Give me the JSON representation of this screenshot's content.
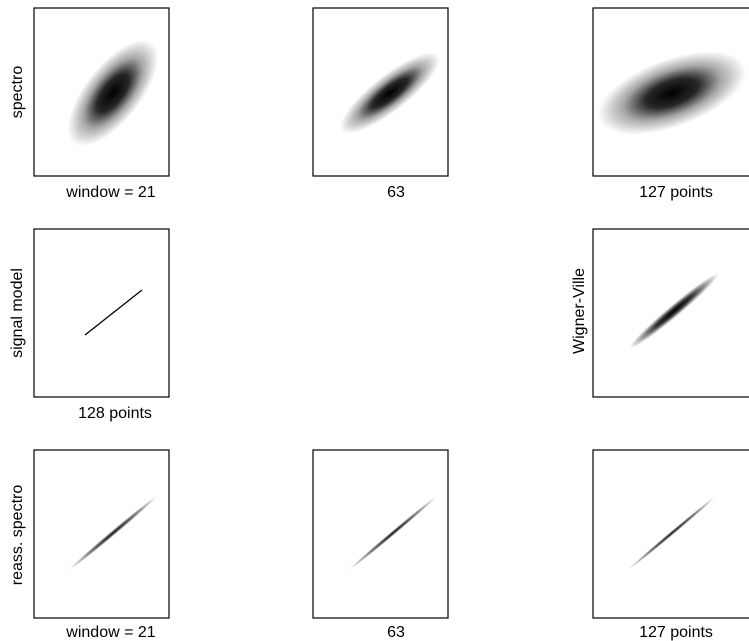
{
  "figure": {
    "row1": {
      "ylabel": "spectro",
      "panels": [
        {
          "caption": "window = 21"
        },
        {
          "caption": "63"
        },
        {
          "caption": "127 points"
        }
      ]
    },
    "row2": {
      "left": {
        "ylabel": "signal model",
        "caption": "128 points"
      },
      "right": {
        "ylabel": "Wigner-Ville",
        "caption": ""
      }
    },
    "row3": {
      "ylabel": "reass. spectro",
      "panels": [
        {
          "caption": "window = 21"
        },
        {
          "caption": "63"
        },
        {
          "caption": "127 points"
        }
      ]
    }
  }
}
